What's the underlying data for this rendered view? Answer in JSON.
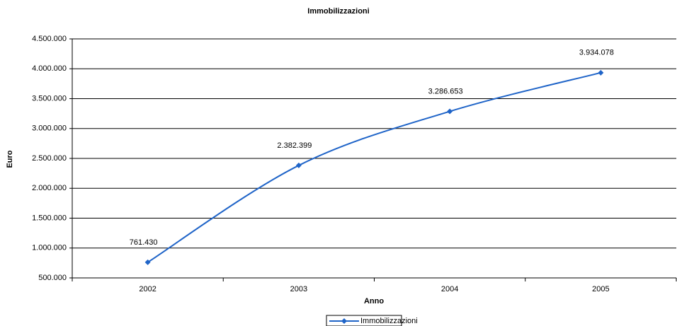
{
  "chart_data": {
    "type": "line",
    "title": "Immobilizzazioni",
    "xlabel": "Anno",
    "ylabel": "Euro",
    "categories": [
      "2002",
      "2003",
      "2004",
      "2005"
    ],
    "series": [
      {
        "name": "Immobilizzazioni",
        "color": "#1f64c8",
        "values": [
          761430,
          2382399,
          3286653,
          3934078
        ],
        "value_labels": [
          "761.430",
          "2.382.399",
          "3.286.653",
          "3.934.078"
        ]
      }
    ],
    "ylim": [
      500000,
      4500000
    ],
    "yticks": [
      {
        "value": 500000,
        "label": "500.000"
      },
      {
        "value": 1000000,
        "label": "1.000.000"
      },
      {
        "value": 1500000,
        "label": "1.500.000"
      },
      {
        "value": 2000000,
        "label": "2.000.000"
      },
      {
        "value": 2500000,
        "label": "2.500.000"
      },
      {
        "value": 3000000,
        "label": "3.000.000"
      },
      {
        "value": 3500000,
        "label": "3.500.000"
      },
      {
        "value": 4000000,
        "label": "4.000.000"
      },
      {
        "value": 4500000,
        "label": "4.500.000"
      }
    ],
    "grid": true,
    "legend": "bottom"
  }
}
